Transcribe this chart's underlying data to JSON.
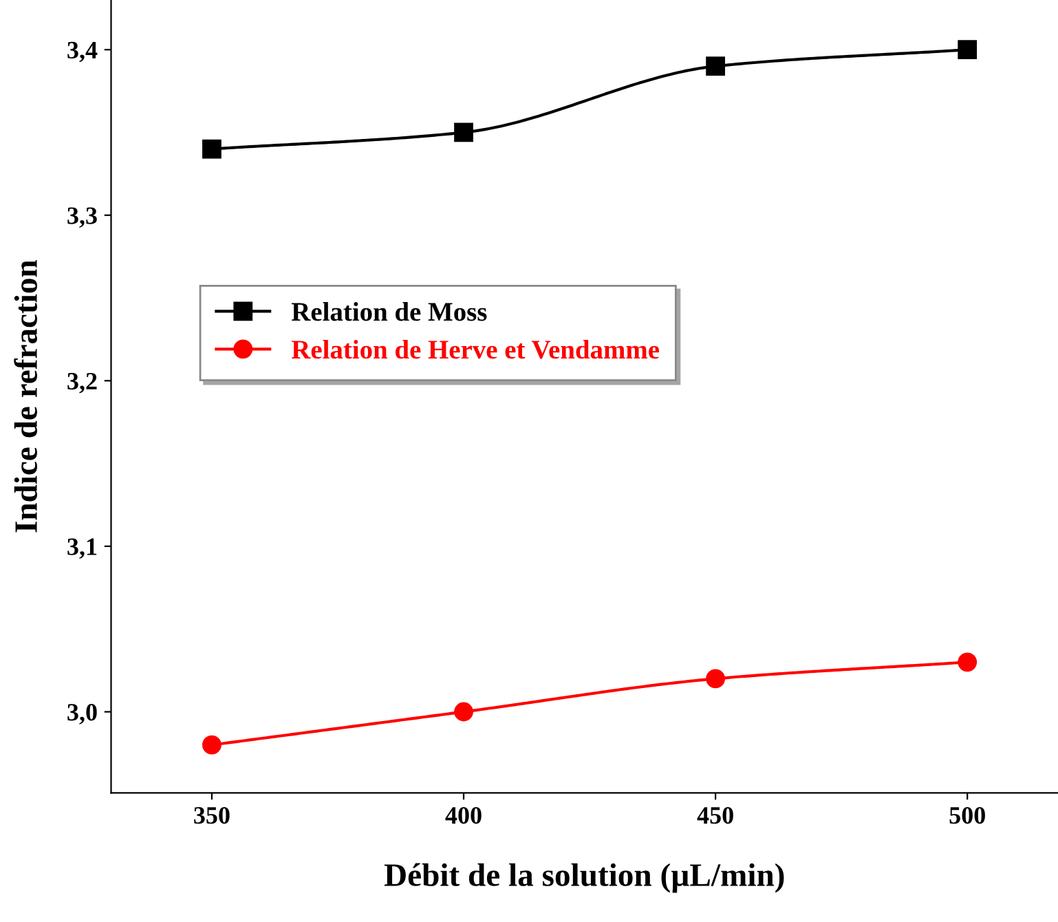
{
  "chart_data": {
    "type": "line",
    "xlabel": "Débit de la solution (µL/min)",
    "ylabel": "Indice de refraction",
    "x": [
      350,
      400,
      450,
      500
    ],
    "series": [
      {
        "name": "Relation de Moss",
        "color": "#000000",
        "marker": "square",
        "values": [
          3.34,
          3.35,
          3.39,
          3.4
        ]
      },
      {
        "name": "Relation de Herve et Vendamme",
        "color": "#ff0000",
        "marker": "circle",
        "values": [
          2.98,
          3.0,
          3.02,
          3.03
        ]
      }
    ],
    "xlim": [
      330,
      518
    ],
    "xticks": [
      350,
      400,
      450,
      500
    ],
    "ylim": [
      2.951,
      3.43
    ],
    "yticks": [
      {
        "value": 3.0,
        "label": "3,0"
      },
      {
        "value": 3.1,
        "label": "3,1"
      },
      {
        "value": 3.2,
        "label": "3,2"
      },
      {
        "value": 3.3,
        "label": "3,3"
      },
      {
        "value": 3.4,
        "label": "3,4"
      }
    ],
    "grid": false,
    "legend": "center left",
    "line_style": "solid"
  }
}
